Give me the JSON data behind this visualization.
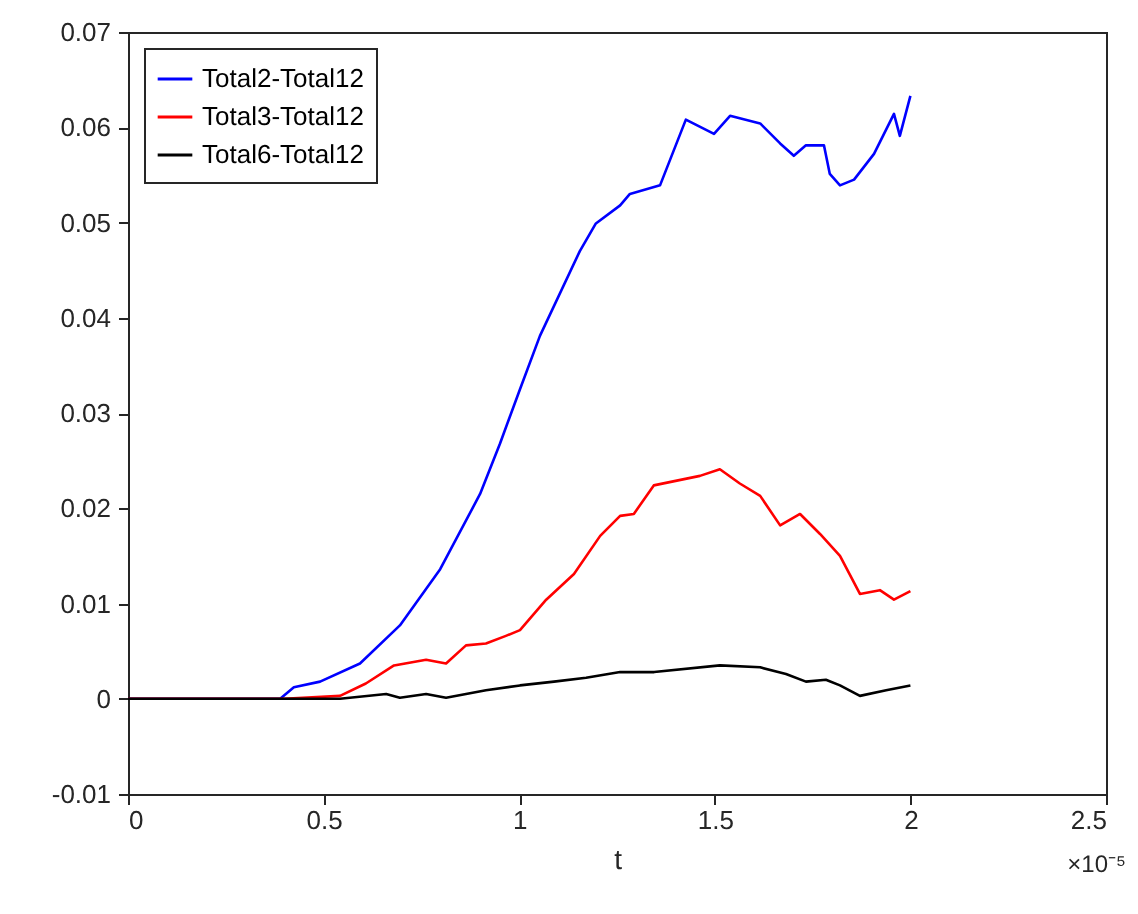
{
  "chart_data": {
    "type": "line",
    "xlabel": "t",
    "annotations": [
      "×10⁻⁵"
    ],
    "xlim": [
      0,
      2.5
    ],
    "xticks": [
      0,
      0.5,
      1,
      1.5,
      2,
      2.5
    ],
    "ylim": [
      -0.01,
      0.07
    ],
    "yticks": [
      -0.01,
      0,
      0.01,
      0.02,
      0.03,
      0.04,
      0.05,
      0.06,
      0.07
    ],
    "legend": "top left",
    "grid": false,
    "line_style": "solid",
    "series": [
      {
        "name": "Total2-Total12",
        "color": "#0000ff",
        "x": [
          0,
          0.389,
          0.424,
          0.491,
          0.593,
          0.695,
          0.798,
          0.9,
          0.951,
          1.002,
          1.053,
          1.155,
          1.196,
          1.258,
          1.283,
          1.36,
          1.426,
          1.498,
          1.539,
          1.616,
          1.667,
          1.702,
          1.733,
          1.779,
          1.794,
          1.82,
          1.856,
          1.907,
          1.958,
          1.973,
          2.0
        ],
        "values": [
          0,
          0,
          0.0012,
          0.0018,
          0.0037,
          0.0077,
          0.0136,
          0.0215,
          0.0268,
          0.0325,
          0.0381,
          0.047,
          0.0499,
          0.0518,
          0.053,
          0.0539,
          0.0608,
          0.0593,
          0.0612,
          0.0604,
          0.0583,
          0.057,
          0.0581,
          0.0581,
          0.0551,
          0.0539,
          0.0545,
          0.0572,
          0.0614,
          0.0591,
          0.0633
        ]
      },
      {
        "name": "Total3-Total12",
        "color": "#ff0000",
        "x": [
          0,
          0.399,
          0.542,
          0.608,
          0.68,
          0.762,
          0.813,
          0.864,
          0.915,
          0.966,
          1.002,
          1.069,
          1.14,
          1.207,
          1.258,
          1.293,
          1.344,
          1.462,
          1.513,
          1.564,
          1.616,
          1.667,
          1.718,
          1.769,
          1.82,
          1.871,
          1.922,
          1.958,
          2.0
        ],
        "values": [
          0,
          0,
          0.0003,
          0.0016,
          0.0035,
          0.0041,
          0.0037,
          0.0056,
          0.0058,
          0.0066,
          0.0072,
          0.0104,
          0.0131,
          0.0171,
          0.0192,
          0.0194,
          0.0224,
          0.0234,
          0.0241,
          0.0226,
          0.0213,
          0.0182,
          0.0194,
          0.0173,
          0.015,
          0.011,
          0.0114,
          0.0104,
          0.0113
        ]
      },
      {
        "name": "Total6-Total12",
        "color": "#000000",
        "x": [
          0,
          0.542,
          0.66,
          0.695,
          0.762,
          0.813,
          0.915,
          1.002,
          1.089,
          1.171,
          1.258,
          1.345,
          1.513,
          1.616,
          1.682,
          1.733,
          1.784,
          1.82,
          1.871,
          1.938,
          2.0
        ],
        "values": [
          0,
          0,
          0.0005,
          0.0001,
          0.0005,
          0.0001,
          0.0009,
          0.0014,
          0.0018,
          0.0022,
          0.0028,
          0.0028,
          0.0035,
          0.0033,
          0.0026,
          0.0018,
          0.002,
          0.0014,
          0.0003,
          0.0009,
          0.0014
        ]
      }
    ]
  }
}
